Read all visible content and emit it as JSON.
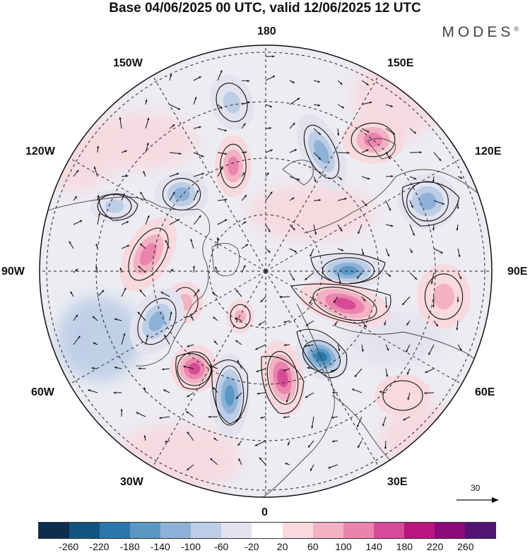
{
  "title": "Base 04/06/2025 00 UTC, valid 12/06/2025 12 UTC",
  "brand": "MODES",
  "brand_mark": "®",
  "map": {
    "projection": "north-polar-stereographic",
    "longitude_labels": {
      "top": "180",
      "top_left": "150W",
      "top_right": "150E",
      "upper_left": "120W",
      "upper_right": "120E",
      "left": "90W",
      "right": "90E",
      "lower_left": "60W",
      "lower_right": "60E",
      "bottom_left": "30W",
      "bottom_right": "30E",
      "bottom": "0"
    },
    "reference_vector_label": "30",
    "anomaly_centers": [
      {
        "id": "n-pacific-neg",
        "sign": "negative",
        "strength": 120
      },
      {
        "id": "e-siberia-neg",
        "sign": "negative",
        "strength": 160
      },
      {
        "id": "bering-pos",
        "sign": "positive",
        "strength": 140
      },
      {
        "id": "alaska-pos",
        "sign": "positive",
        "strength": 140
      },
      {
        "id": "w-canada-neg",
        "sign": "negative",
        "strength": 160
      },
      {
        "id": "aleutian-neg",
        "sign": "negative",
        "strength": 120
      },
      {
        "id": "w-siberia-neg",
        "sign": "negative",
        "strength": 140
      },
      {
        "id": "hudson-pos",
        "sign": "positive",
        "strength": 140
      },
      {
        "id": "arctic-canada-pos",
        "sign": "positive",
        "strength": 100
      },
      {
        "id": "kara-neg",
        "sign": "negative",
        "strength": 180
      },
      {
        "id": "barents-pos",
        "sign": "positive",
        "strength": 180
      },
      {
        "id": "c-asia-pos",
        "sign": "positive",
        "strength": 100
      },
      {
        "id": "labrador-neg",
        "sign": "negative",
        "strength": 140
      },
      {
        "id": "greenland-pos",
        "sign": "positive",
        "strength": 100
      },
      {
        "id": "scandinavia-neg",
        "sign": "negative",
        "strength": 220
      },
      {
        "id": "n-atlantic-pos",
        "sign": "positive",
        "strength": 200
      },
      {
        "id": "mid-atlantic-neg",
        "sign": "negative",
        "strength": 200
      },
      {
        "id": "w-atlantic-pos",
        "sign": "positive",
        "strength": 180
      },
      {
        "id": "e-atlantic-pos",
        "sign": "positive",
        "strength": 60
      }
    ]
  },
  "colorbar": {
    "ticks": [
      "-260",
      "-220",
      "-180",
      "-140",
      "-100",
      "-60",
      "-20",
      "20",
      "60",
      "100",
      "140",
      "180",
      "220",
      "260"
    ],
    "colors": [
      "#0d2d4f",
      "#12547f",
      "#2a78ac",
      "#5a98c4",
      "#8eb1d7",
      "#bccde6",
      "#e3e3f0",
      "#ffffff",
      "#f7d9df",
      "#f2b2c4",
      "#ea84ad",
      "#d64b97",
      "#b8167e",
      "#8a0a7a",
      "#521374"
    ]
  }
}
